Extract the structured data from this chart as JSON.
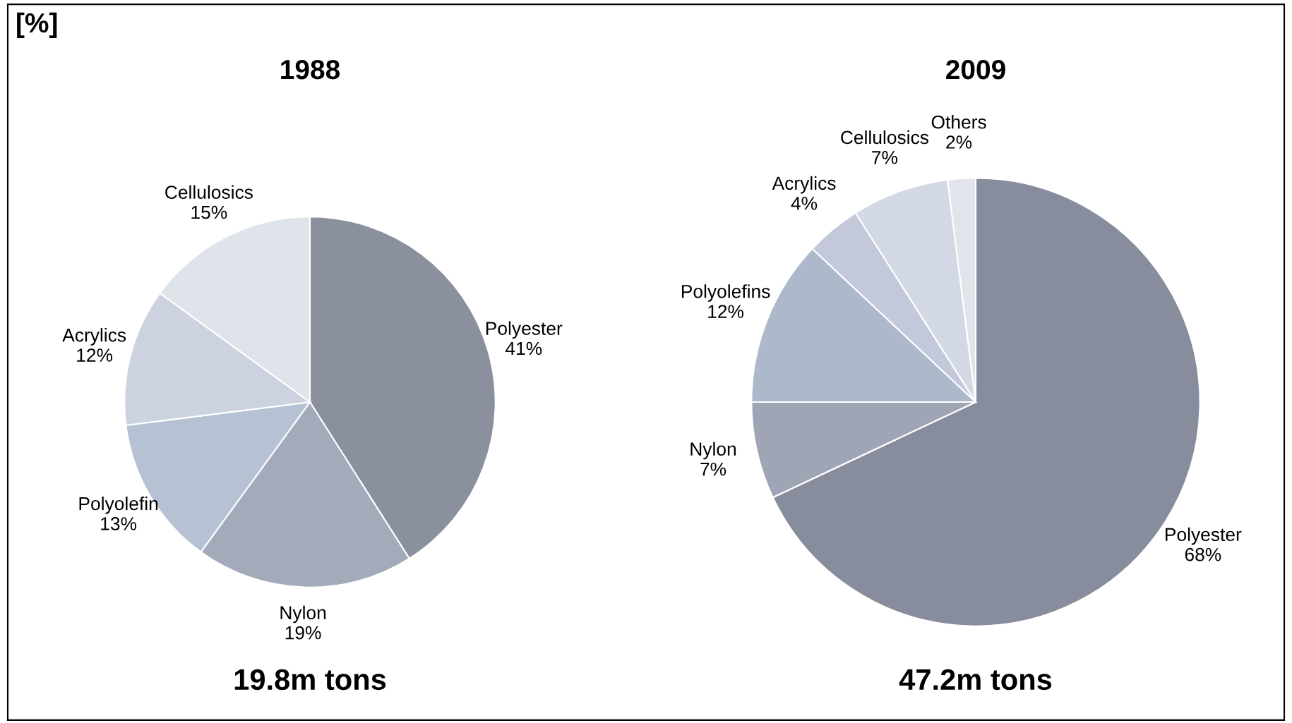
{
  "chart_data": [
    {
      "type": "pie",
      "title": "1988",
      "categories": [
        "Polyester",
        "Nylon",
        "Polyolefin",
        "Acrylics",
        "Cellulosics"
      ],
      "values": [
        41,
        19,
        13,
        12,
        15
      ],
      "value_labels": [
        "41%",
        "19%",
        "13%",
        "12%",
        "15%"
      ],
      "colors": [
        "#8a909e",
        "#a3abbb",
        "#b7c1d4",
        "#ccd2df",
        "#dfe3ea"
      ],
      "annotations": [
        "[%]",
        "19.8m tons"
      ]
    },
    {
      "type": "pie",
      "title": "2009",
      "categories": [
        "Polyester",
        "Nylon",
        "Polyolefins",
        "Acrylics",
        "Cellulosics",
        "Others"
      ],
      "values": [
        68,
        7,
        12,
        4,
        7,
        2
      ],
      "value_labels": [
        "68%",
        "7%",
        "12%",
        "4%",
        "7%",
        "2%"
      ],
      "colors": [
        "#878d9c",
        "#9fa5b5",
        "#adb8ca",
        "#c3c9da",
        "#d3d9e4",
        "#e1e4ea"
      ],
      "annotations": [
        "47.2m tons"
      ]
    }
  ]
}
